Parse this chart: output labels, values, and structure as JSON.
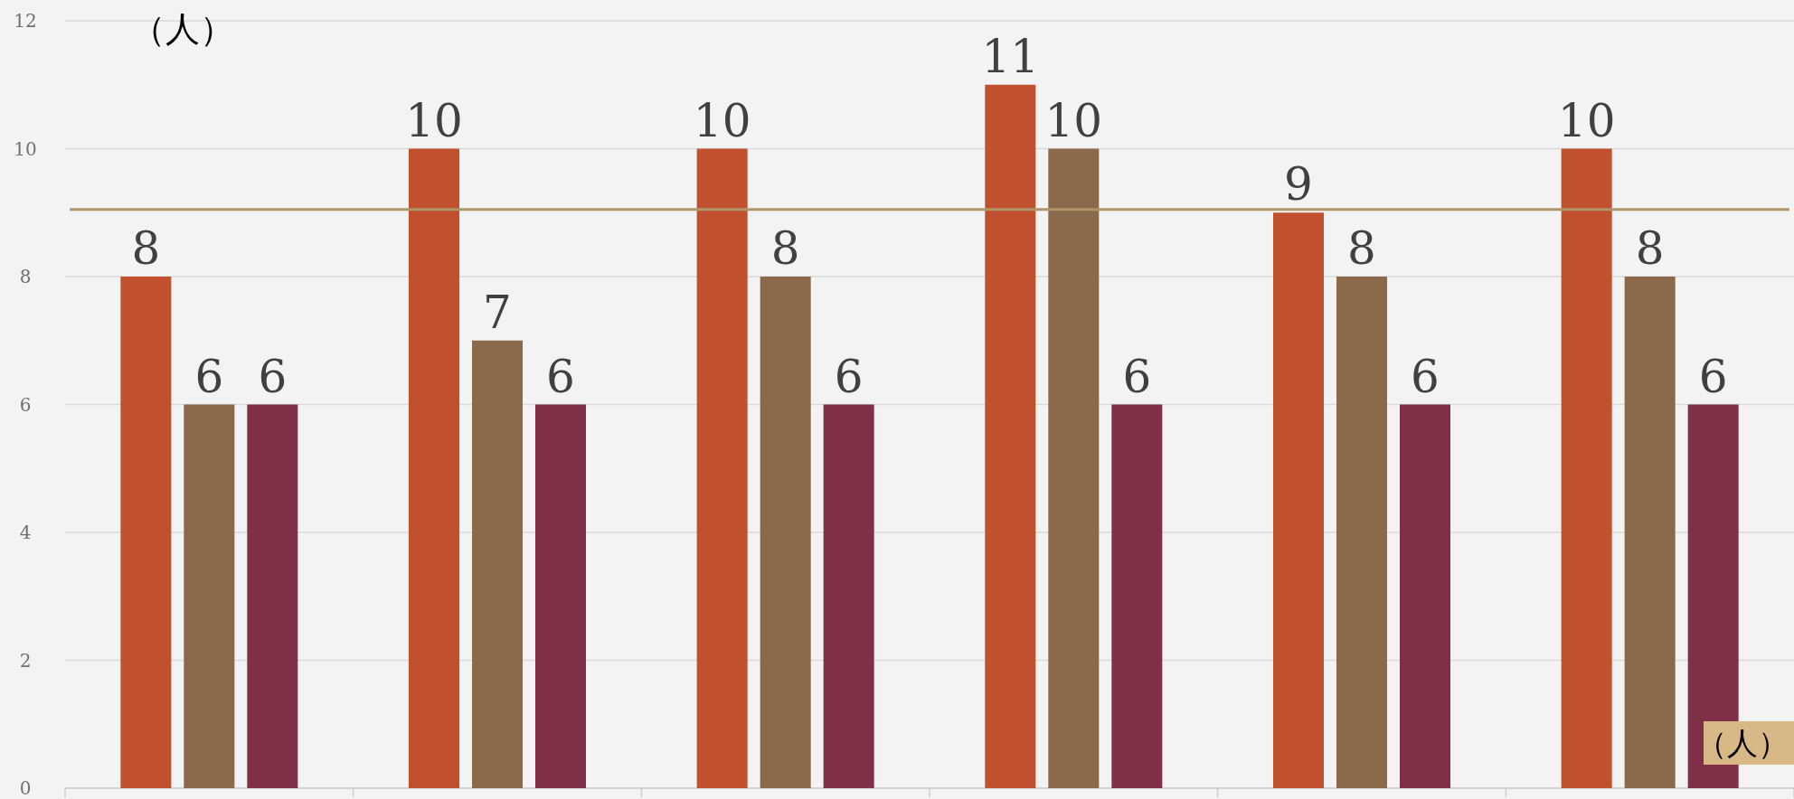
{
  "chart_data": {
    "type": "bar",
    "ylabel": "（人）",
    "xlabel": "（人）",
    "categories": [
      null,
      null,
      null,
      null,
      null,
      null
    ],
    "series": [
      {
        "color": "#c0502e",
        "values": [
          8,
          10,
          10,
          11,
          9,
          10
        ]
      },
      {
        "color": "#8b6a4c",
        "values": [
          6,
          7,
          8,
          10,
          8,
          8
        ]
      },
      {
        "color": "#7f3047",
        "values": [
          6,
          6,
          6,
          6,
          6,
          6
        ]
      }
    ],
    "ylim": [
      0,
      12
    ],
    "yticks": [
      0,
      2,
      4,
      6,
      8,
      10,
      12
    ],
    "grid": "y",
    "tick_labels": "y",
    "data_labels": true,
    "ref_lines": [
      {
        "axis": "y",
        "value": 9.05,
        "color": "#b0946a"
      }
    ]
  }
}
